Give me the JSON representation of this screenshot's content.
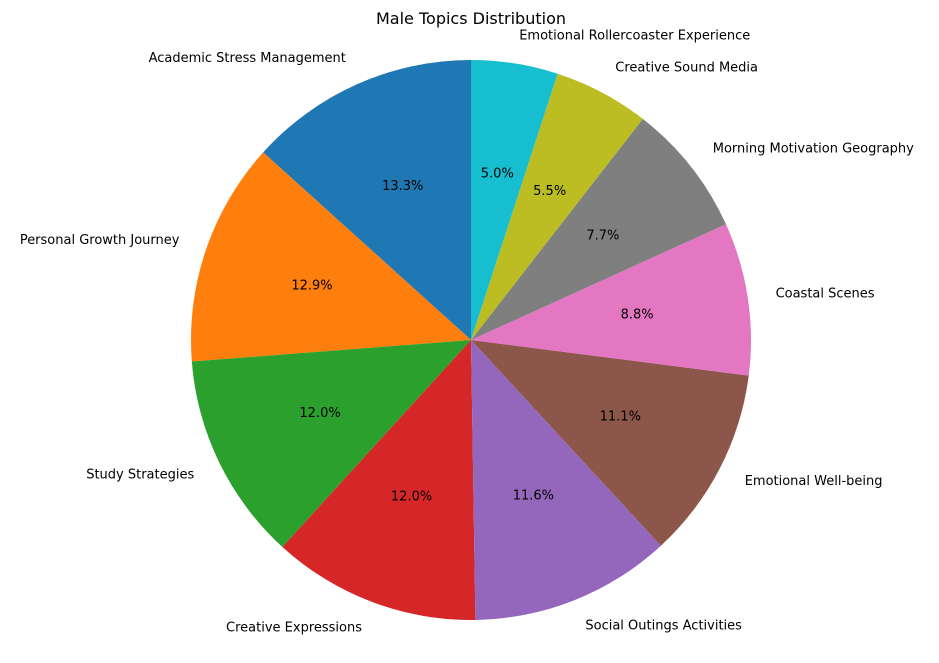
{
  "chart_data": {
    "type": "pie",
    "title": "Male Topics Distribution",
    "start_angle_deg": 90,
    "direction": "counterclockwise",
    "slices": [
      {
        "label": "Academic Stress Management",
        "value": 13.3,
        "pct_label": "13.3%",
        "color": "#1f77b4"
      },
      {
        "label": "Personal Growth Journey",
        "value": 12.9,
        "pct_label": "12.9%",
        "color": "#ff7f0e"
      },
      {
        "label": "Study Strategies",
        "value": 12.0,
        "pct_label": "12.0%",
        "color": "#2ca02c"
      },
      {
        "label": "Creative Expressions",
        "value": 12.0,
        "pct_label": "12.0%",
        "color": "#d62728"
      },
      {
        "label": "Social Outings Activities",
        "value": 11.6,
        "pct_label": "11.6%",
        "color": "#9467bd"
      },
      {
        "label": "Emotional Well-being",
        "value": 11.1,
        "pct_label": "11.1%",
        "color": "#8c564b"
      },
      {
        "label": "Coastal Scenes",
        "value": 8.8,
        "pct_label": "8.8%",
        "color": "#e377c2"
      },
      {
        "label": "Morning Motivation Geography",
        "value": 7.7,
        "pct_label": "7.7%",
        "color": "#7f7f7f"
      },
      {
        "label": "Creative Sound Media",
        "value": 5.5,
        "pct_label": "5.5%",
        "color": "#bcbd22"
      },
      {
        "label": "Emotional Rollercoaster Experience",
        "value": 5.0,
        "pct_label": "5.0%",
        "color": "#17becf"
      }
    ]
  }
}
